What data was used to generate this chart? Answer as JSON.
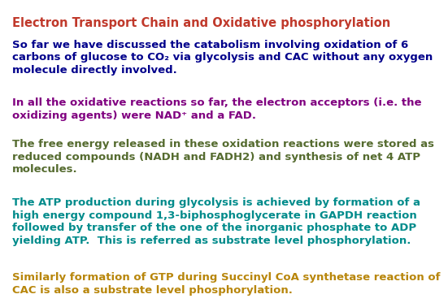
{
  "bg_color": "#ffffff",
  "title": "Electron Transport Chain and Oxidative phosphorylation",
  "title_color": "#c0392b",
  "paragraphs": [
    {
      "color": "#00008B",
      "bold": true,
      "fontsize": 9.5,
      "text": "So far we have discussed the catabolism involving oxidation of 6\ncarbons of glucose to CO₂ via glycolysis and CAC without any oxygen\nmolecule directly involved."
    },
    {
      "color": "#800080",
      "bold": true,
      "fontsize": 9.5,
      "text": "In all the oxidative reactions so far, the electron acceptors (i.e. the\noxidizing agents) were NAD⁺ and a FAD."
    },
    {
      "color": "#556B2F",
      "bold": true,
      "fontsize": 9.5,
      "text": "The free energy released in these oxidation reactions were stored as\nreduced compounds (NADH and FADH2) and synthesis of net 4 ATP\nmolecules."
    },
    {
      "color": "#008B8B",
      "bold": true,
      "fontsize": 9.5,
      "text": "The ATP production during glycolysis is achieved by formation of a\nhigh energy compound 1,3-biphosphoglycerate in GAPDH reaction\nfollowed by transfer of the one of the inorganic phosphate to ADP\nyielding ATP.  This is referred as {substrate level phosphorylation}."
    },
    {
      "color": "#B8860B",
      "bold": true,
      "fontsize": 9.5,
      "text": "Similarly formation of GTP during Succinyl CoA synthetase reaction of\nCAC is also a {substrate level phosphorylation}."
    }
  ]
}
